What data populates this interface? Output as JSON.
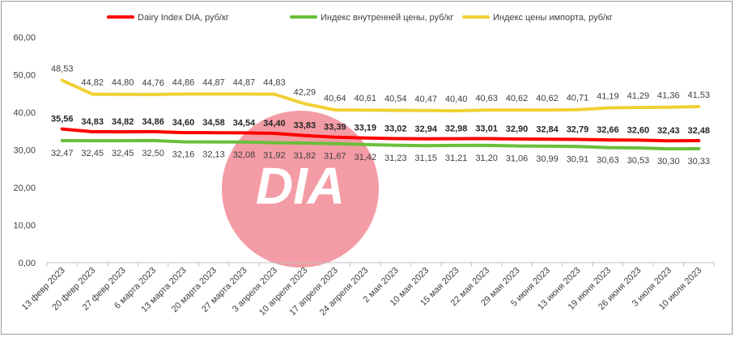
{
  "chart_data": {
    "type": "line",
    "title": "",
    "xlabel": "",
    "ylabel": "",
    "ylim": [
      0,
      60
    ],
    "yticks": [
      "0,00",
      "10,00",
      "20,00",
      "30,00",
      "40,00",
      "50,00",
      "60,00"
    ],
    "grid": false,
    "legend_position": "top",
    "categories": [
      "13 февр 2023",
      "20 февр 2023",
      "27 февр 2023",
      "6 марта 2023",
      "13 марта 2023",
      "20 марта 2023",
      "27 марта 2023",
      "3 апреля 2023",
      "10 апреля 2023",
      "17 апреля 2023",
      "24 апреля 2023",
      "2 мая 2023",
      "10 мая 2023",
      "15 мая 2023",
      "22 мая 2023",
      "29 мая 2023",
      "5 июня 2023",
      "13 июня 2023",
      "19 июня 2023",
      "26 июня 2023",
      "3 июля 2023",
      "10 июля 2023"
    ],
    "series": [
      {
        "name": "Dairy Index DIA,  руб/кг",
        "color": "#ff0000",
        "values": [
          35.56,
          34.83,
          34.82,
          34.86,
          34.6,
          34.58,
          34.54,
          34.4,
          33.83,
          33.39,
          33.19,
          33.02,
          32.94,
          32.98,
          33.01,
          32.9,
          32.84,
          32.79,
          32.66,
          32.6,
          32.43,
          32.48
        ],
        "labels": [
          "35,56",
          "34,83",
          "34,82",
          "34,86",
          "34,60",
          "34,58",
          "34,54",
          "34,40",
          "33,83",
          "33,39",
          "33,19",
          "33,02",
          "32,94",
          "32,98",
          "33,01",
          "32,90",
          "32,84",
          "32,79",
          "32,66",
          "32,60",
          "32,43",
          "32,48"
        ]
      },
      {
        "name": "Индекс внутренней цены, руб/кг",
        "color": "#6abf3a",
        "values": [
          32.47,
          32.45,
          32.45,
          32.5,
          32.16,
          32.13,
          32.08,
          31.92,
          31.82,
          31.67,
          31.42,
          31.23,
          31.15,
          31.21,
          31.2,
          31.06,
          30.99,
          30.91,
          30.63,
          30.53,
          30.3,
          30.33
        ],
        "labels": [
          "32,47",
          "32,45",
          "32,45",
          "32,50",
          "32,16",
          "32,13",
          "32,08",
          "31,92",
          "31,82",
          "31,67",
          "31,42",
          "31,23",
          "31,15",
          "31,21",
          "31,20",
          "31,06",
          "30,99",
          "30,91",
          "30,63",
          "30,53",
          "30,30",
          "30,33"
        ]
      },
      {
        "name": "Индекс цены импорта, руб/кг",
        "color": "#f0d034",
        "values": [
          48.53,
          44.82,
          44.8,
          44.76,
          44.86,
          44.87,
          44.87,
          44.83,
          42.29,
          40.64,
          40.61,
          40.54,
          40.47,
          40.4,
          40.63,
          40.62,
          40.62,
          40.71,
          41.19,
          41.29,
          41.36,
          41.53
        ],
        "labels": [
          "48,53",
          "44,82",
          "44,80",
          "44,76",
          "44,86",
          "44,87",
          "44,87",
          "44,83",
          "42,29",
          "40,64",
          "40,61",
          "40,54",
          "40,47",
          "40,40",
          "40,63",
          "40,62",
          "40,62",
          "40,71",
          "41,19",
          "41,29",
          "41,36",
          "41,53"
        ]
      }
    ],
    "watermark": "DIA",
    "watermark_color": "#f08890"
  }
}
